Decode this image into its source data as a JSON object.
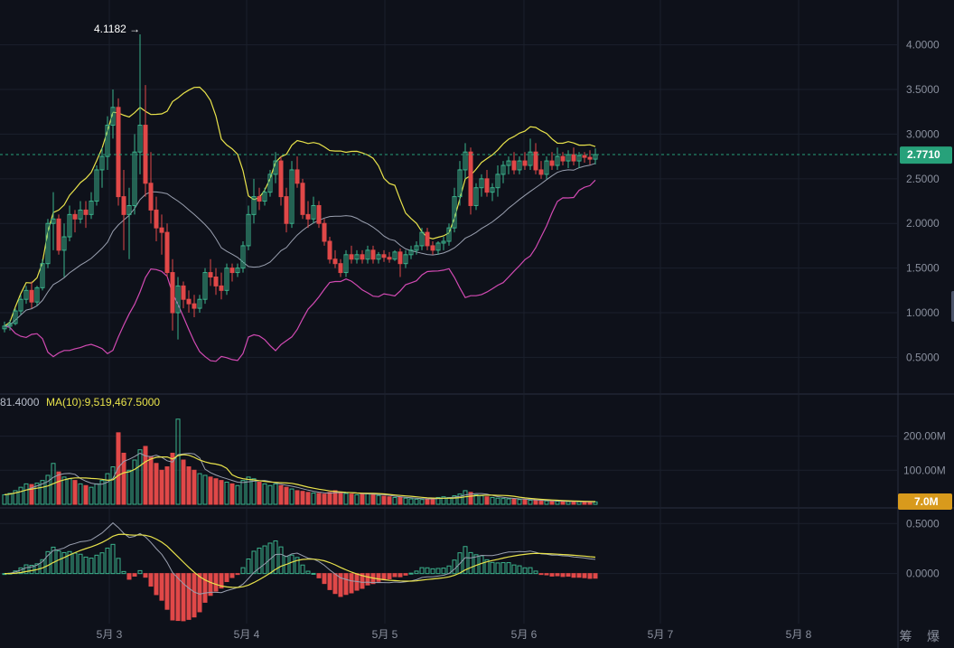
{
  "colors": {
    "background": "#0e111a",
    "grid": "#1b202c",
    "up": "#3bb28c",
    "down": "#e04848",
    "boll_upper": "#e9e34b",
    "boll_mid": "#9aa0b0",
    "boll_lower": "#d24ab3",
    "vol_ma": "#e9e34b",
    "macd_dif": "#e9e34b",
    "macd_dea": "#9aa0b0",
    "last_price_tag": "#27a17a",
    "volume_tag": "#d89a1c"
  },
  "price_panel": {
    "high_marker": "4.1182 →",
    "last_price_label": "2.7710",
    "y_ticks": [
      "4.0000",
      "3.5000",
      "3.0000",
      "2.5000",
      "2.0000",
      "1.5000",
      "1.0000",
      "0.5000"
    ]
  },
  "volume_panel": {
    "header_prefix": "81.4000",
    "header_ma": "MA(10):9,519,467.5000",
    "last_volume_label": "7.0M",
    "y_ticks": [
      "200.00M",
      "100.00M"
    ]
  },
  "macd_panel": {
    "y_ticks": [
      "0.5000",
      "0.0000"
    ]
  },
  "x_axis_labels": [
    "5月 3",
    "5月 4",
    "5月 5",
    "5月 6",
    "5月 7",
    "5月 8"
  ],
  "watermark": "筹 爆",
  "chart_data": {
    "type": "candlestick",
    "title": "",
    "last_price": 2.771,
    "highest_marked": 4.1182,
    "price_axis": {
      "ylim": [
        0.15,
        4.3
      ]
    },
    "volume_axis": {
      "ylim": [
        0,
        260
      ]
    },
    "macd_axis": {
      "ylim": [
        -0.5,
        0.62
      ]
    },
    "x_axis": {
      "labels": [
        "5月 3",
        "5月 4",
        "5月 5",
        "5月 6",
        "5月 7",
        "5月 8"
      ],
      "candle_count": 110
    },
    "candles": [
      [
        0.82,
        0.9,
        0.78,
        0.85
      ],
      [
        0.85,
        0.92,
        0.8,
        0.88
      ],
      [
        0.88,
        1.05,
        0.86,
        1.02
      ],
      [
        1.02,
        1.2,
        0.98,
        1.15
      ],
      [
        1.15,
        1.3,
        1.1,
        1.25
      ],
      [
        1.25,
        1.35,
        1.05,
        1.12
      ],
      [
        1.12,
        1.3,
        1.08,
        1.28
      ],
      [
        1.28,
        1.6,
        1.25,
        1.55
      ],
      [
        1.55,
        2.05,
        1.5,
        2.0
      ],
      [
        2.0,
        2.35,
        1.7,
        2.05
      ],
      [
        2.05,
        2.1,
        1.65,
        1.7
      ],
      [
        1.7,
        2.0,
        1.4,
        1.85
      ],
      [
        1.85,
        2.2,
        1.8,
        2.1
      ],
      [
        2.1,
        2.15,
        1.9,
        2.05
      ],
      [
        2.05,
        2.25,
        2.0,
        2.15
      ],
      [
        2.15,
        2.25,
        1.95,
        2.1
      ],
      [
        2.1,
        2.35,
        2.05,
        2.25
      ],
      [
        2.25,
        2.65,
        2.2,
        2.6
      ],
      [
        2.6,
        2.85,
        2.4,
        2.75
      ],
      [
        2.75,
        3.2,
        2.6,
        3.1
      ],
      [
        3.1,
        3.5,
        2.95,
        3.3
      ],
      [
        3.3,
        3.4,
        2.2,
        2.3
      ],
      [
        2.3,
        2.6,
        1.7,
        2.1
      ],
      [
        2.1,
        2.4,
        1.6,
        2.2
      ],
      [
        2.2,
        3.0,
        2.1,
        2.8
      ],
      [
        2.8,
        4.1182,
        2.55,
        3.1
      ],
      [
        3.1,
        3.55,
        2.3,
        2.45
      ],
      [
        2.45,
        2.8,
        2.0,
        2.15
      ],
      [
        2.15,
        2.3,
        1.8,
        1.95
      ],
      [
        1.95,
        2.1,
        1.65,
        1.9
      ],
      [
        1.9,
        2.0,
        1.4,
        1.45
      ],
      [
        1.45,
        1.6,
        0.8,
        1.0
      ],
      [
        1.0,
        1.4,
        0.7,
        1.3
      ],
      [
        1.3,
        1.35,
        1.05,
        1.15
      ],
      [
        1.15,
        1.25,
        1.0,
        1.1
      ],
      [
        1.1,
        1.2,
        0.95,
        1.05
      ],
      [
        1.05,
        1.2,
        1.0,
        1.15
      ],
      [
        1.15,
        1.5,
        1.1,
        1.45
      ],
      [
        1.45,
        1.6,
        1.3,
        1.4
      ],
      [
        1.4,
        1.5,
        1.2,
        1.3
      ],
      [
        1.3,
        1.45,
        1.15,
        1.25
      ],
      [
        1.25,
        1.55,
        1.2,
        1.5
      ],
      [
        1.5,
        1.55,
        1.35,
        1.45
      ],
      [
        1.45,
        1.55,
        1.4,
        1.5
      ],
      [
        1.5,
        1.8,
        1.45,
        1.75
      ],
      [
        1.75,
        2.2,
        1.7,
        2.1
      ],
      [
        2.1,
        2.5,
        2.0,
        2.3
      ],
      [
        2.3,
        2.4,
        2.15,
        2.25
      ],
      [
        2.25,
        2.4,
        2.2,
        2.35
      ],
      [
        2.35,
        2.6,
        2.3,
        2.55
      ],
      [
        2.55,
        2.8,
        2.45,
        2.7
      ],
      [
        2.7,
        2.75,
        2.2,
        2.3
      ],
      [
        2.3,
        2.4,
        1.9,
        2.0
      ],
      [
        2.0,
        2.7,
        1.95,
        2.6
      ],
      [
        2.6,
        2.75,
        2.4,
        2.45
      ],
      [
        2.45,
        2.5,
        2.05,
        2.1
      ],
      [
        2.1,
        2.25,
        1.95,
        2.05
      ],
      [
        2.05,
        2.3,
        2.0,
        2.2
      ],
      [
        2.2,
        2.25,
        1.95,
        2.0
      ],
      [
        2.0,
        2.05,
        1.75,
        1.8
      ],
      [
        1.8,
        1.85,
        1.55,
        1.6
      ],
      [
        1.6,
        1.7,
        1.5,
        1.55
      ],
      [
        1.55,
        1.6,
        1.4,
        1.45
      ],
      [
        1.45,
        1.7,
        1.4,
        1.65
      ],
      [
        1.65,
        1.75,
        1.55,
        1.6
      ],
      [
        1.6,
        1.7,
        1.55,
        1.65
      ],
      [
        1.65,
        1.7,
        1.55,
        1.6
      ],
      [
        1.6,
        1.75,
        1.55,
        1.7
      ],
      [
        1.7,
        1.75,
        1.55,
        1.6
      ],
      [
        1.6,
        1.68,
        1.55,
        1.65
      ],
      [
        1.65,
        1.7,
        1.57,
        1.62
      ],
      [
        1.62,
        1.68,
        1.56,
        1.6
      ],
      [
        1.6,
        1.7,
        1.58,
        1.68
      ],
      [
        1.68,
        1.72,
        1.4,
        1.55
      ],
      [
        1.55,
        1.7,
        1.5,
        1.65
      ],
      [
        1.65,
        1.75,
        1.6,
        1.7
      ],
      [
        1.7,
        1.8,
        1.65,
        1.75
      ],
      [
        1.75,
        1.95,
        1.7,
        1.9
      ],
      [
        1.9,
        1.95,
        1.7,
        1.75
      ],
      [
        1.75,
        1.8,
        1.65,
        1.7
      ],
      [
        1.7,
        1.8,
        1.65,
        1.78
      ],
      [
        1.78,
        1.85,
        1.7,
        1.8
      ],
      [
        1.8,
        2.0,
        1.75,
        1.95
      ],
      [
        1.95,
        2.4,
        1.9,
        2.3
      ],
      [
        2.3,
        2.7,
        2.2,
        2.6
      ],
      [
        2.6,
        2.9,
        2.5,
        2.8
      ],
      [
        2.8,
        2.85,
        2.1,
        2.2
      ],
      [
        2.2,
        2.45,
        2.15,
        2.4
      ],
      [
        2.4,
        2.55,
        2.3,
        2.5
      ],
      [
        2.5,
        2.6,
        2.3,
        2.35
      ],
      [
        2.35,
        2.45,
        2.25,
        2.4
      ],
      [
        2.4,
        2.65,
        2.3,
        2.55
      ],
      [
        2.55,
        2.7,
        2.45,
        2.65
      ],
      [
        2.65,
        2.75,
        2.55,
        2.7
      ],
      [
        2.7,
        2.8,
        2.55,
        2.6
      ],
      [
        2.6,
        2.75,
        2.55,
        2.7
      ],
      [
        2.7,
        2.8,
        2.6,
        2.65
      ],
      [
        2.65,
        2.95,
        2.6,
        2.8
      ],
      [
        2.8,
        2.9,
        2.55,
        2.6
      ],
      [
        2.6,
        2.7,
        2.5,
        2.55
      ],
      [
        2.55,
        2.75,
        2.5,
        2.7
      ],
      [
        2.7,
        2.8,
        2.6,
        2.65
      ],
      [
        2.65,
        2.85,
        2.6,
        2.75
      ],
      [
        2.75,
        2.8,
        2.65,
        2.7
      ],
      [
        2.7,
        2.82,
        2.62,
        2.77
      ],
      [
        2.77,
        2.85,
        2.65,
        2.7
      ],
      [
        2.7,
        2.8,
        2.62,
        2.76
      ],
      [
        2.76,
        2.8,
        2.68,
        2.74
      ],
      [
        2.74,
        2.82,
        2.66,
        2.72
      ],
      [
        2.72,
        2.84,
        2.66,
        2.771
      ]
    ],
    "volume_millions": [
      28,
      32,
      40,
      50,
      60,
      58,
      62,
      70,
      85,
      120,
      95,
      80,
      75,
      70,
      60,
      55,
      50,
      60,
      70,
      90,
      110,
      210,
      150,
      100,
      130,
      160,
      170,
      140,
      120,
      100,
      110,
      150,
      250,
      130,
      110,
      100,
      90,
      85,
      80,
      75,
      70,
      65,
      60,
      55,
      70,
      80,
      75,
      65,
      60,
      55,
      60,
      55,
      50,
      45,
      40,
      38,
      35,
      33,
      32,
      30,
      35,
      40,
      36,
      32,
      30,
      28,
      30,
      32,
      28,
      26,
      24,
      22,
      20,
      20,
      18,
      16,
      15,
      14,
      16,
      18,
      20,
      22,
      20,
      25,
      30,
      40,
      35,
      28,
      25,
      22,
      20,
      18,
      17,
      16,
      15,
      14,
      13,
      12,
      11,
      10,
      10,
      9,
      9,
      8,
      8,
      8,
      7.5,
      7.2,
      7.0,
      7.0
    ]
  }
}
